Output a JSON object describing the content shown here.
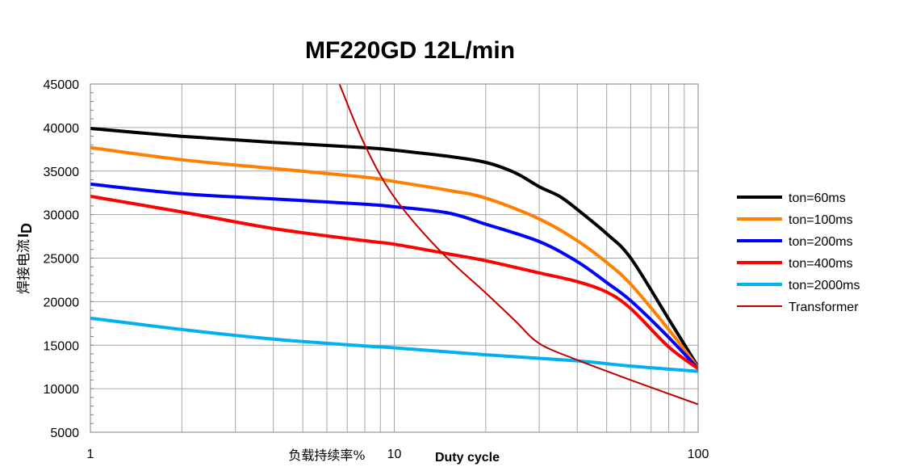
{
  "chart_data": {
    "type": "line",
    "title": "MF220GD 12L/min",
    "x_scale": "log",
    "xlim": [
      1,
      100
    ],
    "ylim": [
      5000,
      45000
    ],
    "x_ticks": [
      "1",
      "10",
      "100"
    ],
    "y_ticks": [
      "45000",
      "40000",
      "35000",
      "30000",
      "25000",
      "20000",
      "15000",
      "10000",
      "5000"
    ],
    "xlabel_cn": "负载持续率%",
    "xlabel_en": "Duty cycle",
    "ylabel": "焊接电流",
    "ylabel_symbol": "I",
    "ylabel_subscript": "D",
    "grid": true,
    "legend_position": "right",
    "series": [
      {
        "name": "ton=60ms",
        "color": "#000000",
        "width": 4,
        "x": [
          1,
          2,
          4,
          8,
          10,
          15,
          20,
          25,
          30,
          35,
          40,
          50,
          60,
          80,
          100
        ],
        "y": [
          39900,
          39000,
          38300,
          37700,
          37400,
          36700,
          36000,
          34800,
          33200,
          32100,
          30600,
          27800,
          25000,
          18000,
          12500
        ]
      },
      {
        "name": "ton=100ms",
        "color": "#ff7f00",
        "width": 4,
        "x": [
          1,
          2,
          4,
          8,
          10,
          15,
          20,
          30,
          40,
          50,
          60,
          80,
          100
        ],
        "y": [
          37700,
          36300,
          35300,
          34300,
          33800,
          32800,
          31900,
          29500,
          27000,
          24500,
          22000,
          16800,
          12400
        ]
      },
      {
        "name": "ton=200ms",
        "color": "#0000ff",
        "width": 4,
        "x": [
          1,
          2,
          4,
          8,
          10,
          15,
          20,
          30,
          40,
          50,
          60,
          80,
          100
        ],
        "y": [
          33500,
          32400,
          31800,
          31200,
          30900,
          30200,
          28900,
          26900,
          24600,
          22200,
          20100,
          15900,
          12300
        ]
      },
      {
        "name": "ton=400ms",
        "color": "#ff0000",
        "width": 4,
        "x": [
          1,
          2,
          4,
          8,
          10,
          15,
          20,
          30,
          40,
          50,
          60,
          80,
          100
        ],
        "y": [
          32100,
          30300,
          28400,
          27000,
          26600,
          25500,
          24700,
          23300,
          22300,
          21100,
          19200,
          14800,
          12300
        ]
      },
      {
        "name": "ton=2000ms",
        "color": "#00b0f0",
        "width": 4,
        "x": [
          1,
          2,
          4,
          8,
          10,
          20,
          40,
          60,
          100
        ],
        "y": [
          18100,
          16800,
          15700,
          14900,
          14700,
          13900,
          13200,
          12600,
          12000
        ]
      },
      {
        "name": "Transformer",
        "color": "#c00000",
        "width": 2,
        "x": [
          6.6,
          8,
          10,
          14,
          20,
          25,
          30,
          40,
          60,
          100
        ],
        "y": [
          45000,
          38000,
          32000,
          26000,
          21000,
          17800,
          15200,
          13300,
          11000,
          8200
        ]
      }
    ]
  }
}
